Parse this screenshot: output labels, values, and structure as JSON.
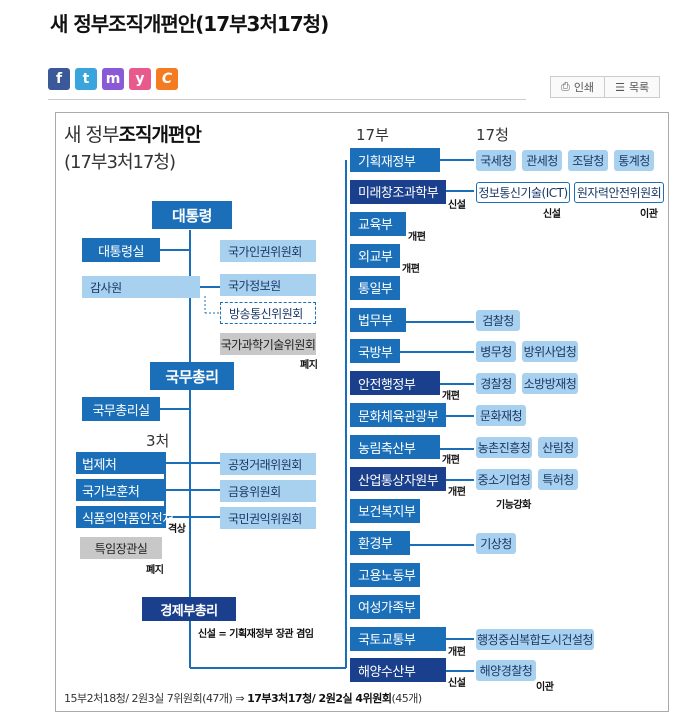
{
  "page": {
    "title": "새 정부조직개편안(17부3처17청)"
  },
  "share": {
    "facebook": "f",
    "twitter": "t",
    "me2day": "m",
    "yozm": "y",
    "cyworld": "C"
  },
  "tools": {
    "print_icon": "printer-icon",
    "print": "인쇄",
    "list_icon": "list-icon",
    "list": "목록"
  },
  "figure": {
    "title_prefix": "새 정부",
    "title_bold": "조직개편안",
    "subtitle": "(17부3처17청)",
    "header_ministries": "17부",
    "header_agencies": "17청",
    "header_offices": "3처",
    "president": "대통령",
    "presidential_office": "대통령실",
    "audit": "감사원",
    "prime_minister": "국무총리",
    "pm_office": "국무총리실",
    "econ_deputy_pm": "경제부총리",
    "econ_note": "신설 = 기획재정부 장관 겸임",
    "president_committees": [
      {
        "name": "국가인권위원회",
        "style": "comm"
      },
      {
        "name": "국가정보원",
        "style": "comm"
      },
      {
        "name": "방송통신위원회",
        "style": "comm-dashed"
      },
      {
        "name": "국가과학기술위원회",
        "style": "gray"
      }
    ],
    "abolished_label": "폐지",
    "offices": [
      "법제처",
      "국가보훈처",
      "식품의약품안전처",
      "특임장관실"
    ],
    "office_upgrade": "격상",
    "office_abolished": "폐지",
    "pm_committees": [
      "공정거래위원회",
      "금융위원회",
      "국민권익위원회"
    ],
    "ministries": [
      {
        "name": "기획재정부",
        "note": ""
      },
      {
        "name": "미래창조과학부",
        "note": "신설"
      },
      {
        "name": "교육부",
        "note": "개편"
      },
      {
        "name": "외교부",
        "note": "개편"
      },
      {
        "name": "통일부",
        "note": ""
      },
      {
        "name": "법무부",
        "note": ""
      },
      {
        "name": "국방부",
        "note": ""
      },
      {
        "name": "안전행정부",
        "note": "개편"
      },
      {
        "name": "문화체육관광부",
        "note": ""
      },
      {
        "name": "농림축산부",
        "note": "개편"
      },
      {
        "name": "산업통상자원부",
        "note": "개편"
      },
      {
        "name": "보건복지부",
        "note": ""
      },
      {
        "name": "환경부",
        "note": ""
      },
      {
        "name": "고용노동부",
        "note": ""
      },
      {
        "name": "여성가족부",
        "note": ""
      },
      {
        "name": "국토교통부",
        "note": "개편"
      },
      {
        "name": "해양수산부",
        "note": "신설"
      }
    ],
    "agencies": {
      "r0": [
        "국세청",
        "관세청",
        "조달청",
        "통계청"
      ],
      "r1": [
        "정보통신기술(ICT)",
        "원자력안전위원회"
      ],
      "r5": [
        "검찰청"
      ],
      "r6": [
        "병무청",
        "방위사업청"
      ],
      "r7": [
        "경찰청",
        "소방방재청"
      ],
      "r8": [
        "문화재청"
      ],
      "r9": [
        "농촌진흥청",
        "산림청"
      ],
      "r10": [
        "중소기업청",
        "특허청"
      ],
      "r12": [
        "기상청"
      ],
      "r15": [
        "행정중심복합도시건설청"
      ],
      "r16": [
        "해양경찰청"
      ]
    },
    "agency_notes": {
      "ict_new": "신설",
      "nuclear_moved": "이관",
      "sme_strengthened": "기능강화",
      "coast_guard_moved": "이관"
    },
    "footer_before": "15부2처18청/ 2원3실 7위원회(47개)",
    "footer_arrow": "⇒",
    "footer_after": "17부3처17청/ 2원2실 4위원회",
    "footer_after_count": "(45개)"
  }
}
